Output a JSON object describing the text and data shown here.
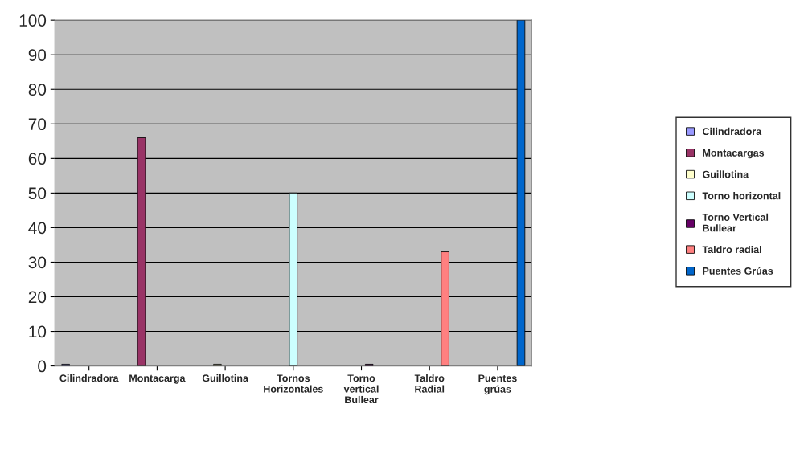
{
  "chart_data": {
    "type": "bar",
    "categories": [
      "Cilindradora",
      "Montacarga",
      "Guillotina",
      "Tornos\nHorizontales",
      "Torno\nvertical\nBullear",
      "Taldro\nRadial",
      "Puentes\ngrúas"
    ],
    "series": [
      {
        "name": "Cilindradora",
        "color": "#9999ff",
        "values": [
          0.5,
          null,
          null,
          null,
          null,
          null,
          null
        ]
      },
      {
        "name": "Montacargas",
        "color": "#993366",
        "values": [
          null,
          66,
          null,
          null,
          null,
          null,
          null
        ]
      },
      {
        "name": "Guillotina",
        "color": "#ffffcc",
        "values": [
          null,
          null,
          0.5,
          null,
          null,
          null,
          null
        ]
      },
      {
        "name": "Torno horizontal",
        "color": "#ccffff",
        "values": [
          null,
          null,
          null,
          50,
          null,
          null,
          null
        ]
      },
      {
        "name": "Torno Vertical\nBullear",
        "color": "#660066",
        "values": [
          null,
          null,
          null,
          null,
          0.5,
          null,
          null
        ]
      },
      {
        "name": "Taldro radial",
        "color": "#ff8080",
        "values": [
          null,
          null,
          null,
          null,
          null,
          33,
          null
        ]
      },
      {
        "name": "Puentes Grúas",
        "color": "#0066cc",
        "values": [
          null,
          null,
          null,
          null,
          null,
          null,
          100
        ]
      }
    ],
    "ylim": [
      0,
      100
    ],
    "yticks": [
      0,
      10,
      20,
      30,
      40,
      50,
      60,
      70,
      80,
      90,
      100
    ],
    "grid": "y",
    "legend": "right"
  }
}
